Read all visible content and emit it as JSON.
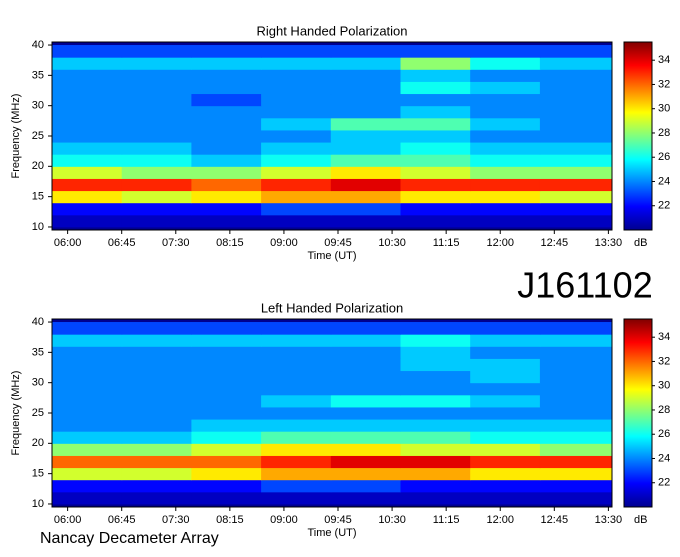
{
  "chart_data": [
    {
      "type": "heatmap",
      "title": "Right Handed Polarization",
      "xlabel": "Time (UT)",
      "ylabel": "Frequency (MHz)",
      "xlim": [
        347,
        813
      ],
      "ylim": [
        9.5,
        40.5
      ],
      "xticks": [
        {
          "value": 360,
          "label": "06:00"
        },
        {
          "value": 405,
          "label": "06:45"
        },
        {
          "value": 450,
          "label": "07:30"
        },
        {
          "value": 495,
          "label": "08:15"
        },
        {
          "value": 540,
          "label": "09:00"
        },
        {
          "value": 585,
          "label": "09:45"
        },
        {
          "value": 630,
          "label": "10:30"
        },
        {
          "value": 675,
          "label": "11:15"
        },
        {
          "value": 720,
          "label": "12:00"
        },
        {
          "value": 765,
          "label": "12:45"
        },
        {
          "value": 810,
          "label": "13:30"
        }
      ],
      "yticks": [
        10,
        15,
        20,
        25,
        30,
        35,
        40
      ],
      "x_bins": [
        347,
        405,
        463,
        521,
        579,
        637,
        695,
        753,
        813
      ],
      "y_bins": [
        10,
        12,
        14,
        16,
        18,
        20,
        22,
        24,
        26,
        28,
        30,
        32,
        34,
        36,
        38,
        40
      ],
      "z": [
        [
          21,
          21,
          21,
          21,
          21,
          21,
          21,
          21
        ],
        [
          22,
          22,
          22,
          23,
          23,
          22,
          22,
          22
        ],
        [
          30,
          29,
          30,
          31,
          31,
          30,
          30,
          29
        ],
        [
          33,
          33,
          32,
          33,
          34,
          33,
          33,
          33
        ],
        [
          29,
          28,
          28,
          29,
          30,
          29,
          28,
          28
        ],
        [
          26,
          26,
          25,
          26,
          27,
          27,
          26,
          26
        ],
        [
          25,
          25,
          24,
          25,
          25,
          26,
          25,
          25
        ],
        [
          24,
          24,
          24,
          24,
          25,
          25,
          24,
          24
        ],
        [
          24,
          24,
          24,
          25,
          27,
          27,
          25,
          24
        ],
        [
          24,
          24,
          24,
          24,
          24,
          25,
          24,
          24
        ],
        [
          24,
          24,
          23,
          24,
          24,
          24,
          24,
          24
        ],
        [
          24,
          24,
          24,
          24,
          24,
          26,
          25,
          24
        ],
        [
          24,
          24,
          24,
          24,
          24,
          25,
          24,
          24
        ],
        [
          25,
          25,
          25,
          25,
          25,
          28,
          26,
          25
        ],
        [
          23,
          23,
          23,
          23,
          23,
          23,
          23,
          23
        ]
      ],
      "clim": [
        20,
        35.5
      ],
      "cticks": [
        22,
        24,
        26,
        28,
        30,
        32,
        34
      ],
      "clabel": "dB"
    },
    {
      "type": "heatmap",
      "title": "Left Handed Polarization",
      "xlabel": "Time (UT)",
      "ylabel": "Frequency (MHz)",
      "xlim": [
        347,
        813
      ],
      "ylim": [
        9.5,
        40.5
      ],
      "xticks": [
        {
          "value": 360,
          "label": "06:00"
        },
        {
          "value": 405,
          "label": "06:45"
        },
        {
          "value": 450,
          "label": "07:30"
        },
        {
          "value": 495,
          "label": "08:15"
        },
        {
          "value": 540,
          "label": "09:00"
        },
        {
          "value": 585,
          "label": "09:45"
        },
        {
          "value": 630,
          "label": "10:30"
        },
        {
          "value": 675,
          "label": "11:15"
        },
        {
          "value": 720,
          "label": "12:00"
        },
        {
          "value": 765,
          "label": "12:45"
        },
        {
          "value": 810,
          "label": "13:30"
        }
      ],
      "yticks": [
        10,
        15,
        20,
        25,
        30,
        35,
        40
      ],
      "x_bins": [
        347,
        405,
        463,
        521,
        579,
        637,
        695,
        753,
        813
      ],
      "y_bins": [
        10,
        12,
        14,
        16,
        18,
        20,
        22,
        24,
        26,
        28,
        30,
        32,
        34,
        36,
        38,
        40
      ],
      "z": [
        [
          21,
          21,
          21,
          21,
          21,
          21,
          21,
          21
        ],
        [
          22,
          22,
          22,
          23,
          23,
          22,
          22,
          22
        ],
        [
          29,
          29,
          30,
          31,
          31,
          31,
          30,
          30
        ],
        [
          32,
          32,
          32,
          33,
          34,
          34,
          33,
          33
        ],
        [
          28,
          28,
          29,
          30,
          30,
          29,
          29,
          28
        ],
        [
          25,
          25,
          26,
          27,
          27,
          27,
          26,
          26
        ],
        [
          24,
          24,
          25,
          25,
          25,
          25,
          25,
          25
        ],
        [
          24,
          24,
          24,
          24,
          24,
          24,
          24,
          24
        ],
        [
          24,
          24,
          24,
          25,
          26,
          26,
          25,
          24
        ],
        [
          24,
          24,
          24,
          24,
          24,
          24,
          24,
          24
        ],
        [
          24,
          24,
          24,
          24,
          24,
          24,
          25,
          24
        ],
        [
          24,
          24,
          24,
          24,
          24,
          25,
          25,
          24
        ],
        [
          24,
          24,
          24,
          24,
          24,
          25,
          24,
          24
        ],
        [
          25,
          25,
          25,
          25,
          25,
          26,
          25,
          25
        ],
        [
          23,
          23,
          23,
          23,
          23,
          23,
          23,
          23
        ]
      ],
      "clim": [
        20,
        35.5
      ],
      "cticks": [
        22,
        24,
        26,
        28,
        30,
        32,
        34
      ],
      "clabel": "dB"
    }
  ],
  "observation_id": "J161102",
  "footer": "Nancay Decameter Array"
}
